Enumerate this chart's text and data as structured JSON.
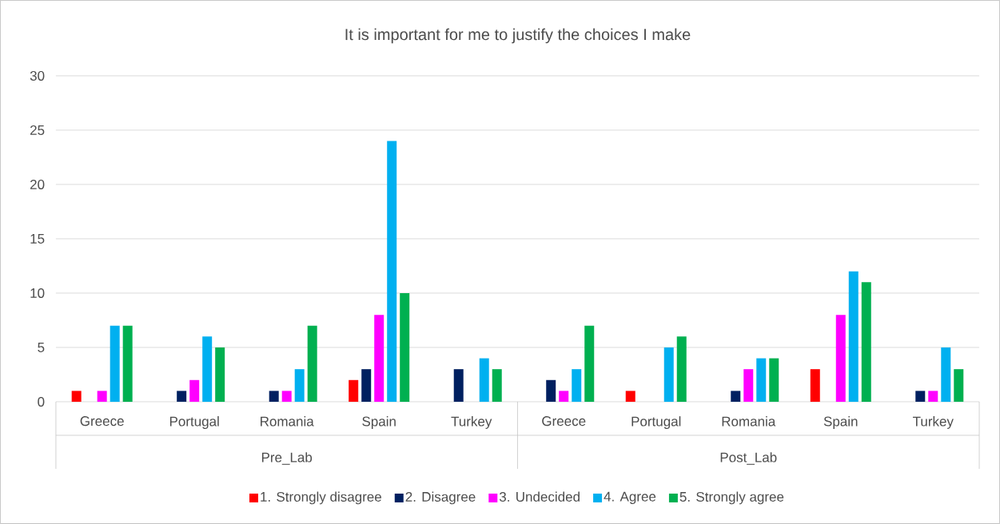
{
  "chart_data": {
    "type": "bar",
    "title": "It is important for me to justify the choices I make",
    "categories": [
      "Greece",
      "Portugal",
      "Romania",
      "Spain",
      "Turkey",
      "Greece",
      "Portugal",
      "Romania",
      "Spain",
      "Turkey"
    ],
    "annotations": [
      "Pre_Lab",
      "Post_Lab"
    ],
    "series": [
      {
        "name": "1. Strongly disagree",
        "color": "#ff0000",
        "values": [
          1,
          0,
          0,
          2,
          0,
          0,
          1,
          0,
          3,
          0
        ]
      },
      {
        "name": "2. Disagree",
        "color": "#002060",
        "values": [
          0,
          1,
          1,
          3,
          3,
          2,
          0,
          1,
          0,
          1
        ]
      },
      {
        "name": "3. Undecided",
        "color": "#ff00ff",
        "values": [
          1,
          2,
          1,
          8,
          0,
          1,
          0,
          3,
          8,
          1
        ]
      },
      {
        "name": "4. Agree",
        "color": "#00b0f0",
        "values": [
          7,
          6,
          3,
          24,
          4,
          3,
          5,
          4,
          12,
          5
        ]
      },
      {
        "name": "5. Strongly agree",
        "color": "#00b050",
        "values": [
          7,
          5,
          7,
          10,
          3,
          7,
          6,
          4,
          11,
          3
        ]
      }
    ],
    "ylim": [
      0,
      30
    ],
    "yticks": [
      0,
      5,
      10,
      15,
      20,
      25,
      30
    ],
    "grid": "y",
    "legend": "bottom"
  }
}
